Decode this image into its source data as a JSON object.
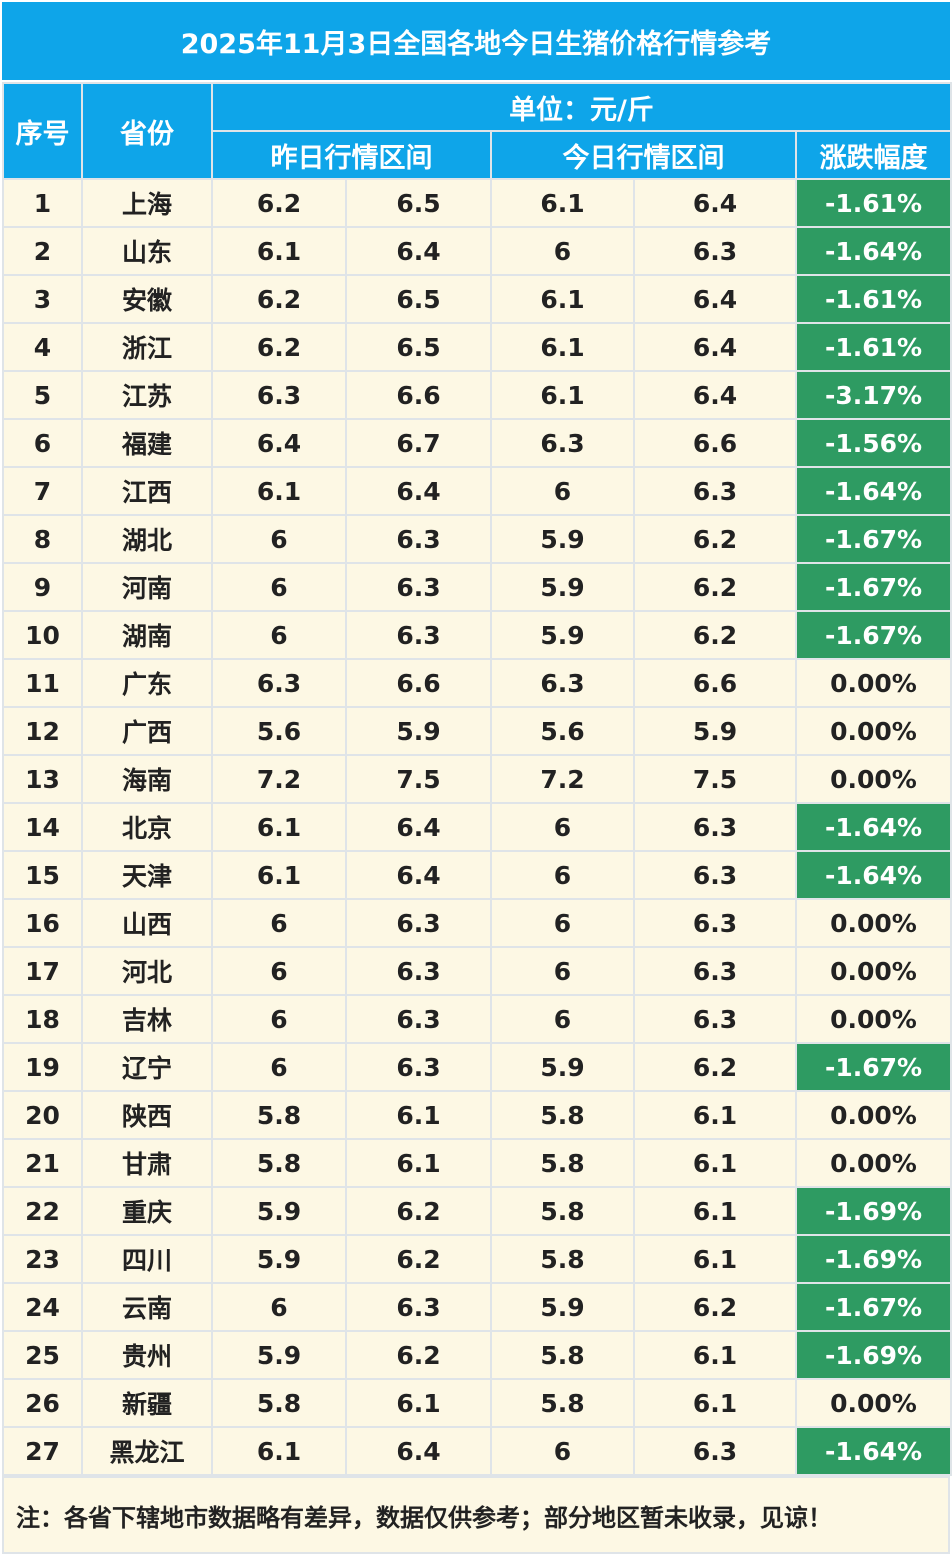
{
  "title": "2025年11月3日全国各地今日生猪价格行情参考",
  "header": {
    "seq": "序号",
    "province": "省份",
    "unit": "单位：元/斤",
    "yesterday": "昨日行情区间",
    "today": "今日行情区间",
    "change": "涨跌幅度"
  },
  "rows": [
    {
      "n": "1",
      "p": "上海",
      "y1": "6.2",
      "y2": "6.5",
      "t1": "6.1",
      "t2": "6.4",
      "c": "-1.61%"
    },
    {
      "n": "2",
      "p": "山东",
      "y1": "6.1",
      "y2": "6.4",
      "t1": "6",
      "t2": "6.3",
      "c": "-1.64%"
    },
    {
      "n": "3",
      "p": "安徽",
      "y1": "6.2",
      "y2": "6.5",
      "t1": "6.1",
      "t2": "6.4",
      "c": "-1.61%"
    },
    {
      "n": "4",
      "p": "浙江",
      "y1": "6.2",
      "y2": "6.5",
      "t1": "6.1",
      "t2": "6.4",
      "c": "-1.61%"
    },
    {
      "n": "5",
      "p": "江苏",
      "y1": "6.3",
      "y2": "6.6",
      "t1": "6.1",
      "t2": "6.4",
      "c": "-3.17%"
    },
    {
      "n": "6",
      "p": "福建",
      "y1": "6.4",
      "y2": "6.7",
      "t1": "6.3",
      "t2": "6.6",
      "c": "-1.56%"
    },
    {
      "n": "7",
      "p": "江西",
      "y1": "6.1",
      "y2": "6.4",
      "t1": "6",
      "t2": "6.3",
      "c": "-1.64%"
    },
    {
      "n": "8",
      "p": "湖北",
      "y1": "6",
      "y2": "6.3",
      "t1": "5.9",
      "t2": "6.2",
      "c": "-1.67%"
    },
    {
      "n": "9",
      "p": "河南",
      "y1": "6",
      "y2": "6.3",
      "t1": "5.9",
      "t2": "6.2",
      "c": "-1.67%"
    },
    {
      "n": "10",
      "p": "湖南",
      "y1": "6",
      "y2": "6.3",
      "t1": "5.9",
      "t2": "6.2",
      "c": "-1.67%"
    },
    {
      "n": "11",
      "p": "广东",
      "y1": "6.3",
      "y2": "6.6",
      "t1": "6.3",
      "t2": "6.6",
      "c": "0.00%"
    },
    {
      "n": "12",
      "p": "广西",
      "y1": "5.6",
      "y2": "5.9",
      "t1": "5.6",
      "t2": "5.9",
      "c": "0.00%"
    },
    {
      "n": "13",
      "p": "海南",
      "y1": "7.2",
      "y2": "7.5",
      "t1": "7.2",
      "t2": "7.5",
      "c": "0.00%"
    },
    {
      "n": "14",
      "p": "北京",
      "y1": "6.1",
      "y2": "6.4",
      "t1": "6",
      "t2": "6.3",
      "c": "-1.64%"
    },
    {
      "n": "15",
      "p": "天津",
      "y1": "6.1",
      "y2": "6.4",
      "t1": "6",
      "t2": "6.3",
      "c": "-1.64%"
    },
    {
      "n": "16",
      "p": "山西",
      "y1": "6",
      "y2": "6.3",
      "t1": "6",
      "t2": "6.3",
      "c": "0.00%"
    },
    {
      "n": "17",
      "p": "河北",
      "y1": "6",
      "y2": "6.3",
      "t1": "6",
      "t2": "6.3",
      "c": "0.00%"
    },
    {
      "n": "18",
      "p": "吉林",
      "y1": "6",
      "y2": "6.3",
      "t1": "6",
      "t2": "6.3",
      "c": "0.00%"
    },
    {
      "n": "19",
      "p": "辽宁",
      "y1": "6",
      "y2": "6.3",
      "t1": "5.9",
      "t2": "6.2",
      "c": "-1.67%"
    },
    {
      "n": "20",
      "p": "陕西",
      "y1": "5.8",
      "y2": "6.1",
      "t1": "5.8",
      "t2": "6.1",
      "c": "0.00%"
    },
    {
      "n": "21",
      "p": "甘肃",
      "y1": "5.8",
      "y2": "6.1",
      "t1": "5.8",
      "t2": "6.1",
      "c": "0.00%"
    },
    {
      "n": "22",
      "p": "重庆",
      "y1": "5.9",
      "y2": "6.2",
      "t1": "5.8",
      "t2": "6.1",
      "c": "-1.69%"
    },
    {
      "n": "23",
      "p": "四川",
      "y1": "5.9",
      "y2": "6.2",
      "t1": "5.8",
      "t2": "6.1",
      "c": "-1.69%"
    },
    {
      "n": "24",
      "p": "云南",
      "y1": "6",
      "y2": "6.3",
      "t1": "5.9",
      "t2": "6.2",
      "c": "-1.67%"
    },
    {
      "n": "25",
      "p": "贵州",
      "y1": "5.9",
      "y2": "6.2",
      "t1": "5.8",
      "t2": "6.1",
      "c": "-1.69%"
    },
    {
      "n": "26",
      "p": "新疆",
      "y1": "5.8",
      "y2": "6.1",
      "t1": "5.8",
      "t2": "6.1",
      "c": "0.00%"
    },
    {
      "n": "27",
      "p": "黑龙江",
      "y1": "6.1",
      "y2": "6.4",
      "t1": "6",
      "t2": "6.3",
      "c": "-1.64%"
    }
  ],
  "note": "注：各省下辖地市数据略有差异，数据仅供参考；部分地区暂未收录，见谅！",
  "colors": {
    "header_bg": "#0ea5e9",
    "row_bg": "#fdf8e4",
    "down_bg": "#2e9b62"
  }
}
